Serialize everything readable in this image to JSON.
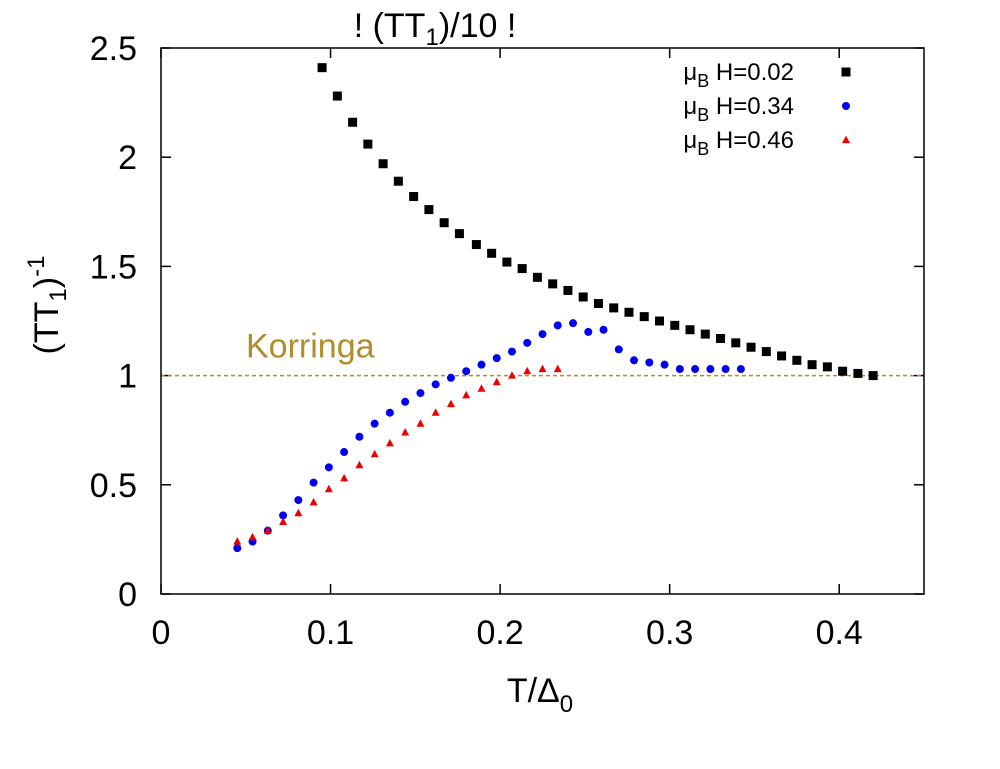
{
  "chart_data": {
    "type": "scatter",
    "title": "! (TT1)/10 !",
    "title_parts": {
      "pre": "! (TT",
      "sub": "1",
      "post": ")/10 !"
    },
    "xlabel": "T/Δ0",
    "xlabel_parts": {
      "main": "T/Δ",
      "sub": "0"
    },
    "ylabel": "(TT1)-1",
    "ylabel_parts": {
      "pre": "(TT",
      "sub": "1",
      "mid": ")",
      "sup": "-1"
    },
    "xlim": [
      0,
      0.45
    ],
    "ylim": [
      0,
      2.5
    ],
    "xticks": [
      0,
      0.1,
      0.2,
      0.3,
      0.4
    ],
    "xtick_labels": [
      "0",
      "0.1",
      "0.2",
      "0.3",
      "0.4"
    ],
    "yticks": [
      0,
      0.5,
      1,
      1.5,
      2,
      2.5
    ],
    "ytick_labels": [
      "0",
      "0.5",
      "1",
      "1.5",
      "2",
      "2.5"
    ],
    "grid": false,
    "legend_position": "top-right",
    "reference_line": {
      "y": 1,
      "label": "Korringa",
      "color": "#b08d2a",
      "style": "dashed"
    },
    "series": [
      {
        "name": "μB H=0.02",
        "name_parts": {
          "mu": "μ",
          "sub": "B",
          "rest": " H=0.02"
        },
        "marker": "square",
        "color": "#000000",
        "x": [
          0.095,
          0.104,
          0.113,
          0.122,
          0.131,
          0.14,
          0.149,
          0.158,
          0.167,
          0.176,
          0.186,
          0.195,
          0.204,
          0.213,
          0.222,
          0.231,
          0.24,
          0.249,
          0.258,
          0.267,
          0.276,
          0.285,
          0.294,
          0.303,
          0.312,
          0.321,
          0.33,
          0.339,
          0.348,
          0.357,
          0.366,
          0.375,
          0.384,
          0.393,
          0.402,
          0.411,
          0.42
        ],
        "y": [
          2.41,
          2.28,
          2.16,
          2.06,
          1.97,
          1.89,
          1.82,
          1.76,
          1.7,
          1.65,
          1.6,
          1.56,
          1.52,
          1.49,
          1.45,
          1.42,
          1.39,
          1.36,
          1.33,
          1.31,
          1.29,
          1.27,
          1.25,
          1.23,
          1.21,
          1.19,
          1.17,
          1.15,
          1.13,
          1.11,
          1.09,
          1.07,
          1.05,
          1.04,
          1.02,
          1.01,
          1.0
        ]
      },
      {
        "name": "μB H=0.34",
        "name_parts": {
          "mu": "μ",
          "sub": "B",
          "rest": " H=0.34"
        },
        "marker": "circle",
        "color": "#0000ee",
        "x": [
          0.045,
          0.054,
          0.063,
          0.072,
          0.081,
          0.09,
          0.099,
          0.108,
          0.117,
          0.126,
          0.135,
          0.144,
          0.153,
          0.162,
          0.171,
          0.18,
          0.189,
          0.198,
          0.207,
          0.216,
          0.225,
          0.234,
          0.243,
          0.252,
          0.261,
          0.27,
          0.279,
          0.288,
          0.297,
          0.306,
          0.315,
          0.324,
          0.333,
          0.342
        ],
        "y": [
          0.21,
          0.24,
          0.29,
          0.36,
          0.43,
          0.51,
          0.58,
          0.65,
          0.72,
          0.78,
          0.83,
          0.88,
          0.92,
          0.96,
          0.99,
          1.02,
          1.05,
          1.08,
          1.11,
          1.15,
          1.19,
          1.23,
          1.24,
          1.2,
          1.21,
          1.12,
          1.07,
          1.06,
          1.05,
          1.03,
          1.03,
          1.03,
          1.03,
          1.03
        ]
      },
      {
        "name": "μB H=0.46",
        "name_parts": {
          "mu": "μ",
          "sub": "B",
          "rest": " H=0.46"
        },
        "marker": "triangle",
        "color": "#ee0000",
        "x": [
          0.045,
          0.054,
          0.063,
          0.072,
          0.081,
          0.09,
          0.099,
          0.108,
          0.117,
          0.126,
          0.135,
          0.144,
          0.153,
          0.162,
          0.171,
          0.18,
          0.189,
          0.198,
          0.207,
          0.216,
          0.225,
          0.234
        ],
        "y": [
          0.24,
          0.26,
          0.29,
          0.33,
          0.37,
          0.42,
          0.48,
          0.53,
          0.59,
          0.64,
          0.69,
          0.74,
          0.78,
          0.83,
          0.87,
          0.91,
          0.94,
          0.97,
          1.0,
          1.02,
          1.03,
          1.03
        ]
      }
    ]
  }
}
